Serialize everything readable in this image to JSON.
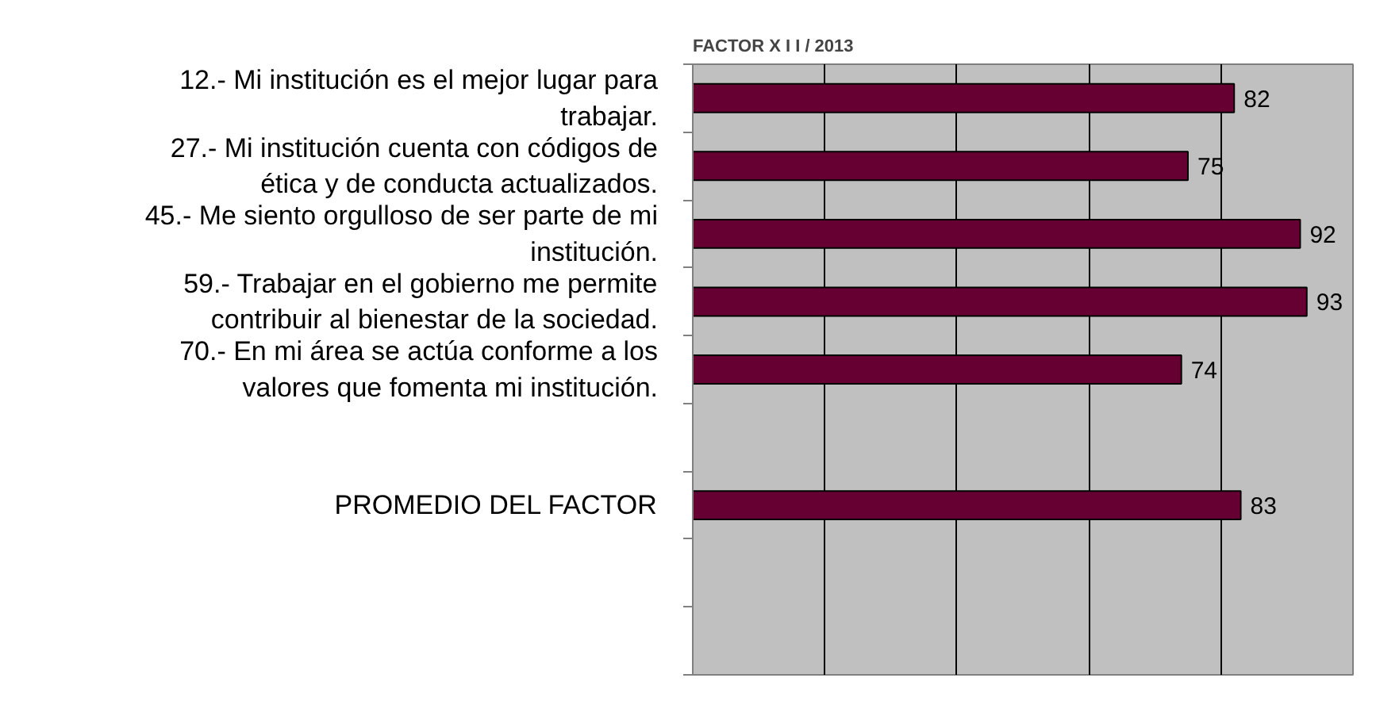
{
  "chart_data": {
    "type": "bar",
    "orientation": "horizontal",
    "title": "FACTOR   X I I   /   2013",
    "categories": [
      "12.- Mi institución es el mejor lugar para\ntrabajar.",
      "27.- Mi institución cuenta con códigos de\nética y de conducta actualizados.",
      "45.- Me siento orgulloso de ser parte de mi\ninstitución.",
      "59.- Trabajar en el gobierno me permite\ncontribuir al bienestar de la sociedad.",
      "70.- En mi área se actúa conforme a los\nvalores que fomenta mi institución.",
      null,
      "PROMEDIO DEL FACTOR",
      null,
      null
    ],
    "values": [
      82,
      75,
      92,
      93,
      74,
      null,
      83,
      null,
      null
    ],
    "color": "#660033",
    "data_labels": true,
    "grid": "x",
    "tick_labels": "y",
    "xlim": [
      0,
      100
    ],
    "xticks": [
      {
        "value": 0,
        "label": null
      },
      {
        "value": 20,
        "label": null
      },
      {
        "value": 40,
        "label": null
      },
      {
        "value": 60,
        "label": null
      },
      {
        "value": 80,
        "label": null
      },
      {
        "value": 100,
        "label": null
      }
    ]
  }
}
